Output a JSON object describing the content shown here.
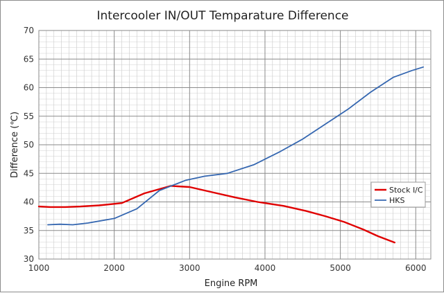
{
  "chart_data": {
    "type": "line",
    "title": "Intercooler IN/OUT Temparature Difference",
    "xlabel": "Engine RPM",
    "ylabel": "Difference (℃)",
    "xlim": [
      1000,
      6200
    ],
    "ylim": [
      30,
      70
    ],
    "x_ticks": [
      1000,
      2000,
      3000,
      4000,
      5000,
      6000
    ],
    "y_ticks": [
      30,
      35,
      40,
      45,
      50,
      55,
      60,
      65,
      70
    ],
    "grid": true,
    "legend_position": "right",
    "series": [
      {
        "name": "Stock I/C",
        "color": "#e00000",
        "points": [
          [
            1000,
            39.2
          ],
          [
            1150,
            39.1
          ],
          [
            1350,
            39.1
          ],
          [
            1550,
            39.2
          ],
          [
            1800,
            39.4
          ],
          [
            2100,
            39.8
          ],
          [
            2400,
            41.5
          ],
          [
            2750,
            42.8
          ],
          [
            3000,
            42.6
          ],
          [
            3300,
            41.7
          ],
          [
            3600,
            40.8
          ],
          [
            3900,
            40.0
          ],
          [
            4250,
            39.3
          ],
          [
            4550,
            38.4
          ],
          [
            4800,
            37.5
          ],
          [
            5050,
            36.5
          ],
          [
            5300,
            35.2
          ],
          [
            5500,
            34.0
          ],
          [
            5720,
            32.9
          ]
        ]
      },
      {
        "name": "HKS",
        "color": "#3466b0",
        "points": [
          [
            1120,
            36.0
          ],
          [
            1280,
            36.1
          ],
          [
            1450,
            36.0
          ],
          [
            1650,
            36.3
          ],
          [
            2000,
            37.1
          ],
          [
            2300,
            38.8
          ],
          [
            2600,
            42.0
          ],
          [
            2950,
            43.8
          ],
          [
            3200,
            44.5
          ],
          [
            3500,
            45.0
          ],
          [
            3850,
            46.5
          ],
          [
            4200,
            48.8
          ],
          [
            4500,
            51.0
          ],
          [
            4800,
            53.6
          ],
          [
            5100,
            56.2
          ],
          [
            5400,
            59.2
          ],
          [
            5700,
            61.8
          ],
          [
            5950,
            63.0
          ],
          [
            6100,
            63.6
          ]
        ]
      }
    ]
  }
}
